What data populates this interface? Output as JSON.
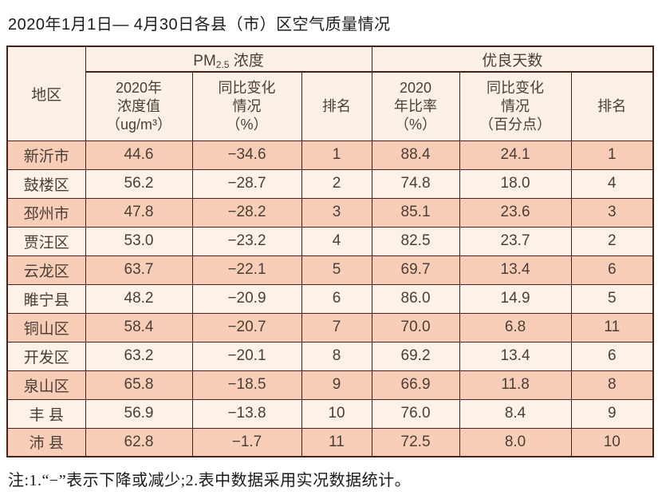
{
  "title": "2020年1月1日— 4月30日各县（市）区空气质量情况",
  "table": {
    "region_header": "地区",
    "pm25_header": {
      "prefix": "PM",
      "sub": "2.5",
      "suffix": " 浓度"
    },
    "good_days_header": "优良天数",
    "sub_headers": [
      "2020年\n浓度值\n（ug/m³）",
      "同比变化\n情况\n（%）",
      "排名",
      "2020\n年比率\n（%）",
      "同比变化\n情况\n（百分点）",
      "排名"
    ],
    "rows": [
      {
        "region": "新沂市",
        "values": [
          "44.6",
          "−34.6",
          "1",
          "88.4",
          "24.1",
          "1"
        ]
      },
      {
        "region": "鼓楼区",
        "values": [
          "56.2",
          "−28.7",
          "2",
          "74.8",
          "18.0",
          "4"
        ]
      },
      {
        "region": "邳州市",
        "values": [
          "47.8",
          "−28.2",
          "3",
          "85.1",
          "23.6",
          "3"
        ]
      },
      {
        "region": "贾汪区",
        "values": [
          "53.0",
          "−23.2",
          "4",
          "82.5",
          "23.7",
          "2"
        ]
      },
      {
        "region": "云龙区",
        "values": [
          "63.7",
          "−22.1",
          "5",
          "69.7",
          "13.4",
          "6"
        ]
      },
      {
        "region": "睢宁县",
        "values": [
          "48.2",
          "−20.9",
          "6",
          "86.0",
          "14.9",
          "5"
        ]
      },
      {
        "region": "铜山区",
        "values": [
          "58.4",
          "−20.7",
          "7",
          "70.0",
          "6.8",
          "11"
        ]
      },
      {
        "region": "开发区",
        "values": [
          "63.2",
          "−20.1",
          "8",
          "69.2",
          "13.4",
          "6"
        ]
      },
      {
        "region": "泉山区",
        "values": [
          "65.8",
          "−18.5",
          "9",
          "66.9",
          "11.8",
          "8"
        ]
      },
      {
        "region": "丰 县",
        "values": [
          "56.9",
          "−13.8",
          "10",
          "76.0",
          "8.4",
          "9"
        ]
      },
      {
        "region": "沛 县",
        "values": [
          "62.8",
          "−1.7",
          "11",
          "72.5",
          "8.0",
          "10"
        ]
      }
    ]
  },
  "footnote": "注:1.“−”表示下降或减少;2.表中数据采用实况数据统计。",
  "colors": {
    "border": "#45231a",
    "row_odd_bg": "#f9ceb8",
    "row_even_bg": "#fdf1ea",
    "header_bg": "#fcf0e7",
    "table_text": "#4a3e36",
    "title_text": "#1c1c1c"
  }
}
